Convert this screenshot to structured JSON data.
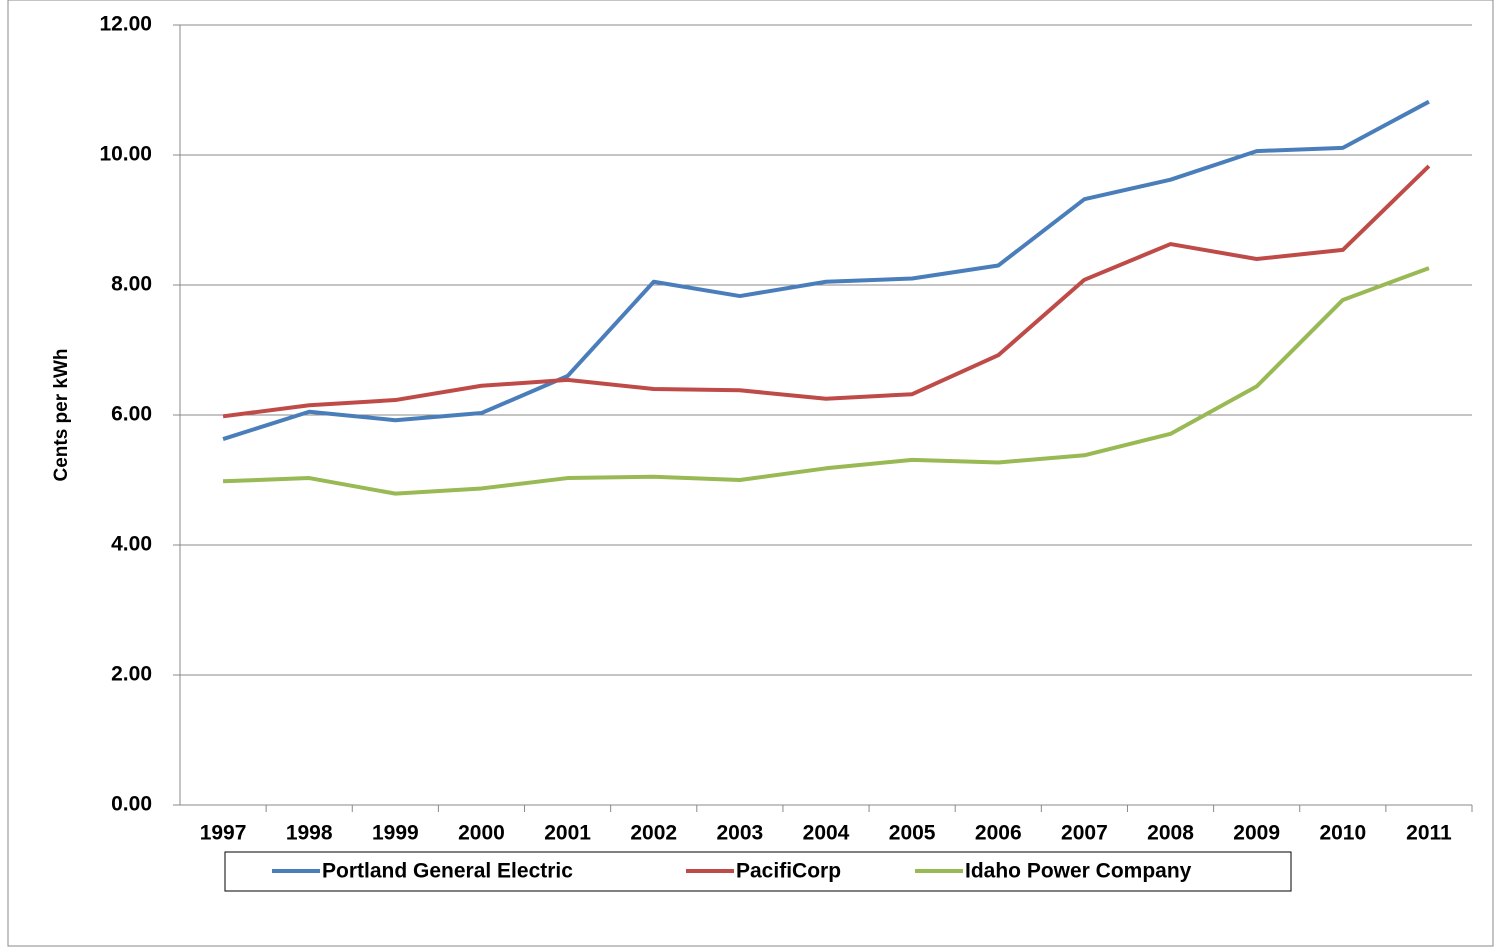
{
  "chart_data": {
    "type": "line",
    "y_label": "Cents per kWh",
    "categories": [
      "1997",
      "1998",
      "1999",
      "2000",
      "2001",
      "2002",
      "2003",
      "2004",
      "2005",
      "2006",
      "2007",
      "2008",
      "2009",
      "2010",
      "2011"
    ],
    "series": [
      {
        "name": "Portland General Electric",
        "color": "#4a7ebb",
        "values": [
          5.63,
          6.05,
          5.92,
          6.03,
          6.6,
          8.05,
          7.83,
          8.05,
          8.1,
          8.3,
          9.32,
          9.62,
          10.06,
          10.11,
          10.82
        ]
      },
      {
        "name": "PacifiCorp",
        "color": "#be4b48",
        "values": [
          5.98,
          6.15,
          6.23,
          6.45,
          6.54,
          6.4,
          6.38,
          6.25,
          6.32,
          6.92,
          8.08,
          8.63,
          8.4,
          8.54,
          9.83
        ]
      },
      {
        "name": "Idaho Power Company",
        "color": "#98b954",
        "values": [
          4.98,
          5.03,
          4.79,
          4.87,
          5.03,
          5.05,
          5.0,
          5.18,
          5.31,
          5.27,
          5.38,
          5.71,
          6.44,
          7.77,
          8.26
        ]
      }
    ],
    "ylim": [
      0,
      12
    ],
    "yticks": [
      {
        "value": 0,
        "label": "0.00"
      },
      {
        "value": 2,
        "label": "2.00"
      },
      {
        "value": 4,
        "label": "4.00"
      },
      {
        "value": 6,
        "label": "6.00"
      },
      {
        "value": 8,
        "label": "8.00"
      },
      {
        "value": 10,
        "label": "10.00"
      },
      {
        "value": 12,
        "label": "12.00"
      }
    ],
    "grid": true,
    "legend": "bottom"
  }
}
